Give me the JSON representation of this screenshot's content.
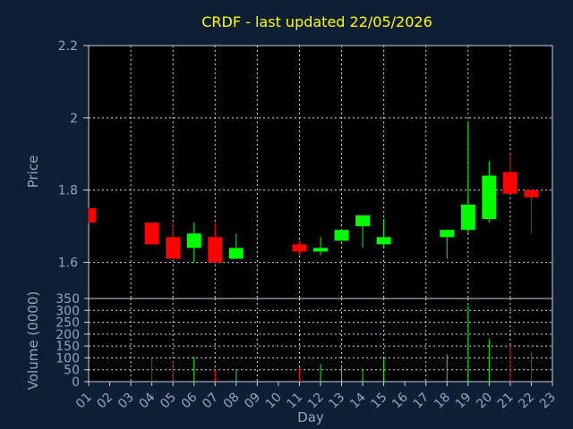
{
  "chart_data": {
    "title": "CRDF - last updated 22/05/2026",
    "xlabel": "Day",
    "price_panel": {
      "type": "candlestick",
      "ylabel": "Price",
      "ylim": [
        1.5,
        2.2
      ],
      "yticks": [
        "1.6",
        "1.8",
        "2",
        "2.2"
      ],
      "grid": true
    },
    "volume_panel": {
      "type": "bar",
      "ylabel": "Volume (0000)",
      "ylim": [
        0,
        350
      ],
      "yticks": [
        "0",
        "50",
        "100",
        "150",
        "200",
        "250",
        "300",
        "350"
      ],
      "grid": true
    },
    "categories": [
      "01",
      "02",
      "03",
      "04",
      "05",
      "06",
      "07",
      "08",
      "09",
      "10",
      "11",
      "12",
      "13",
      "14",
      "15",
      "16",
      "17",
      "18",
      "19",
      "20",
      "21",
      "22",
      "23"
    ],
    "candles": [
      {
        "day": "01",
        "open": 1.75,
        "high": 1.75,
        "low": 1.71,
        "close": 1.71,
        "direction": "down"
      },
      {
        "day": "04",
        "open": 1.71,
        "high": 1.71,
        "low": 1.65,
        "close": 1.65,
        "direction": "down"
      },
      {
        "day": "05",
        "open": 1.67,
        "high": 1.71,
        "low": 1.61,
        "close": 1.61,
        "direction": "down"
      },
      {
        "day": "06",
        "open": 1.64,
        "high": 1.71,
        "low": 1.6,
        "close": 1.68,
        "direction": "up"
      },
      {
        "day": "07",
        "open": 1.67,
        "high": 1.71,
        "low": 1.6,
        "close": 1.6,
        "direction": "down"
      },
      {
        "day": "08",
        "open": 1.61,
        "high": 1.68,
        "low": 1.61,
        "close": 1.64,
        "direction": "up"
      },
      {
        "day": "11",
        "open": 1.65,
        "high": 1.66,
        "low": 1.62,
        "close": 1.63,
        "direction": "down"
      },
      {
        "day": "12",
        "open": 1.63,
        "high": 1.67,
        "low": 1.62,
        "close": 1.64,
        "direction": "up"
      },
      {
        "day": "13",
        "open": 1.66,
        "high": 1.69,
        "low": 1.66,
        "close": 1.69,
        "direction": "up"
      },
      {
        "day": "14",
        "open": 1.7,
        "high": 1.73,
        "low": 1.64,
        "close": 1.73,
        "direction": "up"
      },
      {
        "day": "15",
        "open": 1.65,
        "high": 1.72,
        "low": 1.64,
        "close": 1.67,
        "direction": "up"
      },
      {
        "day": "18",
        "open": 1.67,
        "high": 1.69,
        "low": 1.61,
        "close": 1.69,
        "direction": "up"
      },
      {
        "day": "19",
        "open": 1.69,
        "high": 1.99,
        "low": 1.68,
        "close": 1.76,
        "direction": "up"
      },
      {
        "day": "20",
        "open": 1.72,
        "high": 1.88,
        "low": 1.71,
        "close": 1.84,
        "direction": "up"
      },
      {
        "day": "21",
        "open": 1.85,
        "high": 1.9,
        "low": 1.79,
        "close": 1.79,
        "direction": "down"
      },
      {
        "day": "22",
        "open": 1.8,
        "high": 1.8,
        "low": 1.68,
        "close": 1.78,
        "direction": "down"
      }
    ],
    "volume": [
      {
        "day": "04",
        "value": 100,
        "direction": "down"
      },
      {
        "day": "05",
        "value": 90,
        "direction": "down"
      },
      {
        "day": "06",
        "value": 105,
        "direction": "up"
      },
      {
        "day": "07",
        "value": 50,
        "direction": "down"
      },
      {
        "day": "08",
        "value": 50,
        "direction": "up"
      },
      {
        "day": "11",
        "value": 60,
        "direction": "down"
      },
      {
        "day": "12",
        "value": 75,
        "direction": "up"
      },
      {
        "day": "13",
        "value": 70,
        "direction": "up"
      },
      {
        "day": "14",
        "value": 55,
        "direction": "up"
      },
      {
        "day": "15",
        "value": 100,
        "direction": "up"
      },
      {
        "day": "18",
        "value": 115,
        "direction": "up"
      },
      {
        "day": "19",
        "value": 320,
        "direction": "up"
      },
      {
        "day": "20",
        "value": 180,
        "direction": "up"
      },
      {
        "day": "21",
        "value": 155,
        "direction": "down"
      },
      {
        "day": "22",
        "value": 125,
        "direction": "down"
      }
    ],
    "colors": {
      "background": "#0f1f33",
      "plot_background": "#000000",
      "up": "#00ff00",
      "down": "#ff0000",
      "title": "#ffff00",
      "axis_text": "#8aa6c8",
      "grid": "#d0d8e8"
    }
  }
}
